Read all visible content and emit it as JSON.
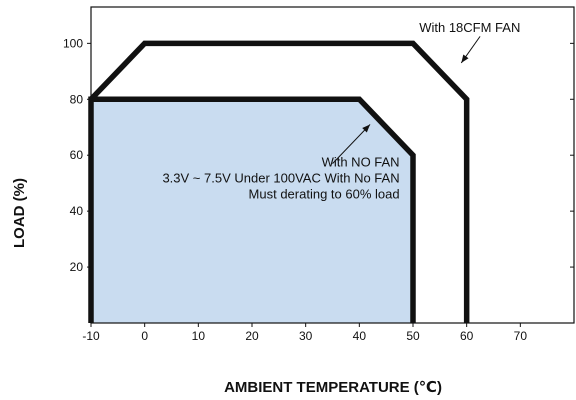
{
  "chart_data": {
    "type": "line",
    "xlabel": "AMBIENT TEMPERATURE (℃)",
    "ylabel": "LOAD (%)",
    "xlim": [
      -10,
      80
    ],
    "ylim": [
      0,
      113
    ],
    "x_ticks": [
      -10,
      0,
      10,
      20,
      30,
      40,
      50,
      60,
      70
    ],
    "y_ticks": [
      20,
      40,
      60,
      80,
      100
    ],
    "grid": false,
    "series": [
      {
        "name": "With 18CFM FAN",
        "x": [
          -10,
          0,
          50,
          60,
          60
        ],
        "y": [
          80,
          100,
          100,
          80,
          0
        ],
        "fill": false,
        "color": "#111111"
      },
      {
        "name": "With NO FAN",
        "x": [
          -10,
          -10,
          40,
          50,
          50
        ],
        "y": [
          0,
          80,
          80,
          60,
          0
        ],
        "fill": true,
        "color": "#111111",
        "fill_color": "#c9dcf0"
      }
    ],
    "annotations": [
      {
        "lines": [
          "With 18CFM FAN"
        ],
        "anchor": "end",
        "text_at": [
          70,
          104
        ],
        "arrow_from": [
          62.5,
          102.5
        ],
        "arrow_to": [
          59,
          93
        ]
      },
      {
        "lines": [
          "With NO FAN",
          "3.3V ~ 7.5V Under 100VAC With No FAN",
          "Must derating to 60% load"
        ],
        "anchor": "end",
        "text_at": [
          47.5,
          56
        ],
        "arrow_from": [
          35,
          57
        ],
        "arrow_to": [
          42,
          71
        ]
      }
    ]
  }
}
